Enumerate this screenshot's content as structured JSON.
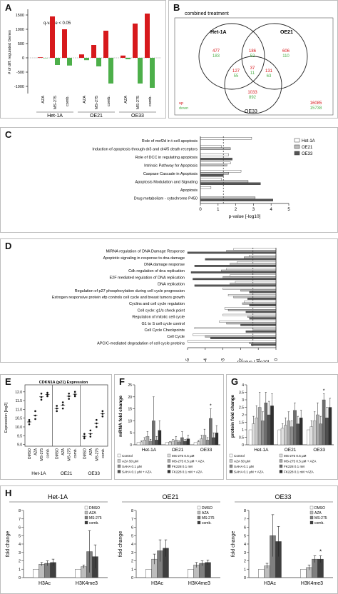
{
  "panels": {
    "A": {
      "label": "A",
      "annotation": "q-value < 0.05",
      "ylabel": "# of diff. regulated Genes",
      "yticks": [
        "1500",
        "1000",
        "500",
        "0",
        "-500",
        "-1000"
      ],
      "treatments": [
        "AZA",
        "MS-275",
        "comb."
      ],
      "groups": [
        "Het-1A",
        "OE21",
        "OE33"
      ]
    },
    "B": {
      "label": "B",
      "title": "combined treatment",
      "sets": [
        "Het-1A",
        "OE21",
        "OE33"
      ],
      "regions": [
        {
          "up": "477",
          "down": "183"
        },
        {
          "up": "606",
          "down": "110"
        },
        {
          "up": "186",
          "down": "52"
        },
        {
          "up": "37",
          "down": "11"
        },
        {
          "up": "127",
          "down": "55"
        },
        {
          "up": "131",
          "down": "63"
        },
        {
          "up": "1033",
          "down": "892"
        }
      ],
      "legend_up": "up",
      "legend_down": "down",
      "outside_up": "16085",
      "outside_down": "15738"
    },
    "C": {
      "label": "C",
      "legend": [
        "Het-1A",
        "OE21",
        "OE33"
      ],
      "xlabel": "p-value [-log10]",
      "xticks": [
        "0",
        "1",
        "2",
        "3",
        "4",
        "5"
      ],
      "terms": [
        "Role of mef2d in t-cell apoptosis",
        "Induction of apoptosis through dr3 and dr4/5 death receptors",
        "Role of DCC in regulating apoptosis",
        "Intrinsic Pathway for Apoptosis",
        "Caspase Cascade in Apoptosis",
        "Apoptosis Modulation and Signaling",
        "Apoptosis",
        "Drug metabolism - cytochrome P450"
      ]
    },
    "D": {
      "label": "D",
      "xlabel": "p-value [-log10]",
      "xticks": [
        "-5",
        "-4",
        "-3",
        "-2",
        "-1",
        "0"
      ],
      "terms": [
        "MiRNA regulation of DNA Damage Response",
        "Apoptotic signaling in response to dna damage",
        "DNA damage response",
        "Cdk regulation of dna replication",
        "E2F mediated regulation of DNA replication",
        "DNA replication",
        "Regulation of p27 phosphorylation during cell cycle progression",
        "Estrogen responsive protein efp controls cell cycle and breast tumors growth",
        "Cyclins and cell cycle regulation",
        "Cell cycle: g1/s check point",
        "Regulation of mitotic cell cycle",
        "G1 to S cell cycle control",
        "Cell Cycle Checkpoints",
        "Cell Cycle",
        "APC/C-mediated degradation of cell cycle proteins"
      ]
    },
    "E": {
      "label": "E",
      "title": "CDKN1A (p21) Expression",
      "ylabel": "Expression [log2]",
      "yticks": [
        "12.0",
        "11.5",
        "11.0",
        "10.5",
        "10.0",
        "9.5",
        "9.0"
      ],
      "treatments": [
        "DMSO",
        "AZA",
        "MS-275",
        "comb."
      ],
      "groups": [
        "Het-1A",
        "OE21",
        "OE33"
      ]
    },
    "F": {
      "label": "F",
      "ylabel": "mRNA fold change",
      "yticks": [
        "0",
        "5",
        "10",
        "15",
        "20",
        "25"
      ],
      "groups": [
        "Het-1A",
        "OE21",
        "OE33"
      ],
      "star": "*",
      "legend": [
        "Control",
        "MS-275 0.5 µM",
        "AZA 50 µM",
        "MS-275 0.5 µM + AZA",
        "SAHA 0.1 µM",
        "FK228 0.1 nM",
        "SAHA 0.1 µM + AZA",
        "FK228  0.1 nM + AZA"
      ]
    },
    "G": {
      "label": "G",
      "ylabel": "protein fold change",
      "yticks": [
        "0",
        "0.5",
        "1",
        "1.5",
        "2",
        "2.5",
        "3",
        "3.5",
        "4"
      ],
      "groups": [
        "Het-1A",
        "OE21",
        "OE33"
      ],
      "star": "*",
      "legend": [
        "Control",
        "MS-275 0.5 µM",
        "AZA 50 µM",
        "MS-275 0.5 µM + AZA",
        "SAHA 0.1 µM",
        "FK228 0.1 nM",
        "SAHA 0.1 µM + AZA",
        "FK228  0.1 nM +AZA"
      ]
    },
    "H": {
      "label": "H",
      "ylabel": "fold change",
      "subpanels": [
        {
          "title": "Het-1A",
          "yticks": [
            "0",
            "1",
            "2",
            "3",
            "4",
            "5",
            "6",
            "7",
            "8"
          ]
        },
        {
          "title": "OE21",
          "yticks": [
            "0",
            "1",
            "2",
            "3",
            "4",
            "5",
            "6",
            "7",
            "8"
          ]
        },
        {
          "title": "OE33",
          "yticks": [
            "0",
            "1",
            "2",
            "3",
            "4",
            "5",
            "6",
            "7",
            "8"
          ]
        }
      ],
      "categories": [
        "H3Ac",
        "H3K4me3"
      ],
      "legend": [
        "DMSO",
        "AZA",
        "MS-275",
        "comb."
      ],
      "star": "*"
    }
  },
  "chart_data": [
    {
      "type": "bar",
      "panel": "A",
      "ylabel": "# of diff. regulated Genes",
      "ylim": [
        -1250,
        1700
      ],
      "categories": [
        "Het-1A AZA",
        "Het-1A MS-275",
        "Het-1A comb.",
        "OE21 AZA",
        "OE21 MS-275",
        "OE21 comb.",
        "OE33 AZA",
        "OE33 MS-275",
        "OE33 comb."
      ],
      "series": [
        {
          "values": [
            20,
            1450,
            1000,
            120,
            450,
            950,
            80,
            1200,
            1550
          ]
        },
        {
          "values": [
            -10,
            -250,
            -270,
            -80,
            -300,
            -900,
            -50,
            -900,
            -1050
          ]
        }
      ],
      "colors": [
        "#d7191c",
        "#4daf4a"
      ]
    },
    {
      "type": "bar",
      "panel": "C",
      "xlabel": "p-value [-log10]",
      "xlim": [
        0,
        5
      ],
      "categories": [
        "Role of mef2d in t-cell apoptosis",
        "Induction of apoptosis through dr3 and dr4/5 death receptors",
        "Role of DCC in regulating apoptosis",
        "Intrinsic Pathway for Apoptosis",
        "Caspase Cascade in Apoptosis",
        "Apoptosis Modulation and Signaling",
        "Apoptosis",
        "Drug metabolism - cytochrome P450"
      ],
      "series": [
        {
          "name": "Het-1A",
          "values": [
            2.9,
            1.2,
            1.6,
            1.7,
            2.3,
            1.2,
            0.6,
            0
          ]
        },
        {
          "name": "OE21",
          "values": [
            0,
            1.7,
            0,
            1.5,
            1.6,
            2.7,
            0,
            3.1
          ]
        },
        {
          "name": "OE33",
          "values": [
            0,
            0,
            1.8,
            0,
            1.3,
            3.4,
            0,
            4.1
          ]
        }
      ],
      "threshold": 1.3
    },
    {
      "type": "bar",
      "panel": "D",
      "xlabel": "p-value [-log10]",
      "xlim": [
        -5,
        0
      ],
      "categories": [
        "MiRNA regulation of DNA Damage Response",
        "Apoptotic signaling in response to dna damage",
        "DNA damage response",
        "Cdk regulation of dna replication",
        "E2F mediated regulation of DNA replication",
        "DNA replication",
        "Regulation of p27 phosphorylation during cell cycle progression",
        "Estrogen responsive protein efp controls cell cycle and breast tumors growth",
        "Cyclins and cell cycle regulation",
        "Cell cycle: g1/s check point",
        "Regulation of mitotic cell cycle",
        "G1 to S cell cycle control",
        "Cell Cycle Checkpoints",
        "Cell Cycle",
        "APC/C-mediated degradation of cell cycle proteins"
      ],
      "series": [
        {
          "name": "Het-1A",
          "values": [
            -2.4,
            -1.5,
            -2.2,
            -2.8,
            -2.6,
            -2.3,
            -3.0,
            -2.7,
            -1.8,
            -2.9,
            -3.0,
            -3.2,
            -4.6,
            -4.7,
            -5.0
          ]
        },
        {
          "name": "OE21",
          "values": [
            -2.8,
            -1.8,
            -2.6,
            -3.1,
            -3.0,
            -2.6,
            -2.0,
            -2.4,
            -1.9,
            -2.7,
            -1.6,
            -2.8,
            -1.3,
            -4.0,
            -1.5
          ]
        },
        {
          "name": "OE33",
          "values": [
            -5.0,
            -4.0,
            -4.6,
            -4.8,
            -4.7,
            -4.6,
            -1.5,
            -1.6,
            -1.5,
            -1.7,
            -1.5,
            -2.0,
            -1.7,
            -3.7,
            -1.4
          ]
        }
      ],
      "threshold": -1.3
    },
    {
      "type": "scatter",
      "panel": "E",
      "title": "CDKN1A (p21) Expression",
      "ylabel": "Expression [log2]",
      "ylim": [
        8.9,
        12.4
      ],
      "categories": [
        "Het-1A DMSO",
        "Het-1A AZA",
        "Het-1A MS-275",
        "Het-1A comb.",
        "OE21 DMSO",
        "OE21 AZA",
        "OE21 MS-275",
        "OE21 comb.",
        "OE33 DMSO",
        "OE33 AZA",
        "OE33 MS-275",
        "OE33 comb."
      ],
      "values": [
        [
          10.15,
          10.4,
          10.3
        ],
        [
          10.45,
          10.9,
          10.65
        ],
        [
          11.55,
          11.9,
          11.7
        ],
        [
          11.75,
          11.95,
          11.85
        ],
        [
          10.9,
          11.2,
          11.05
        ],
        [
          11.05,
          11.4,
          11.25
        ],
        [
          11.6,
          11.9,
          11.75
        ],
        [
          11.75,
          12.0,
          11.85
        ],
        [
          9.35,
          9.6,
          9.45
        ],
        [
          9.45,
          9.8,
          9.6
        ],
        [
          10.0,
          10.4,
          10.2
        ],
        [
          10.6,
          10.9,
          10.75
        ]
      ]
    },
    {
      "type": "bar",
      "panel": "F",
      "ylabel": "mRNA fold change",
      "ylim": [
        0,
        25
      ],
      "categories": [
        "Het-1A",
        "OE21",
        "OE33"
      ],
      "series": [
        {
          "values": [
            1,
            1,
            1
          ],
          "errors": [
            0,
            0,
            0
          ]
        },
        {
          "values": [
            1.2,
            1.1,
            1.3
          ],
          "errors": [
            0.4,
            0.3,
            0.5
          ]
        },
        {
          "values": [
            2.0,
            1.5,
            2.5
          ],
          "errors": [
            1.0,
            0.8,
            1.5
          ]
        },
        {
          "values": [
            3.5,
            2.0,
            4.0
          ],
          "errors": [
            2.0,
            1.5,
            2.5
          ]
        },
        {
          "values": [
            1.5,
            1.2,
            2.0
          ],
          "errors": [
            0.8,
            0.5,
            1.0
          ]
        },
        {
          "values": [
            10.0,
            3.0,
            11.0
          ],
          "errors": [
            10.0,
            2.5,
            4.0
          ]
        },
        {
          "values": [
            2.0,
            1.5,
            3.0
          ],
          "errors": [
            1.5,
            0.8,
            2.0
          ]
        },
        {
          "values": [
            6.0,
            2.5,
            5.0
          ],
          "errors": [
            4.0,
            1.5,
            3.0
          ]
        }
      ]
    },
    {
      "type": "bar",
      "panel": "G",
      "ylabel": "protein fold change",
      "ylim": [
        0,
        4
      ],
      "categories": [
        "Het-1A",
        "OE21",
        "OE33"
      ],
      "series": [
        {
          "values": [
            1,
            1,
            1
          ],
          "errors": [
            0,
            0,
            0
          ]
        },
        {
          "values": [
            1.4,
            1.1,
            1.2
          ],
          "errors": [
            0.5,
            0.3,
            0.4
          ]
        },
        {
          "values": [
            1.8,
            1.3,
            1.6
          ],
          "errors": [
            0.8,
            0.5,
            0.6
          ]
        },
        {
          "values": [
            2.5,
            1.6,
            2.0
          ],
          "errors": [
            1.0,
            0.6,
            0.8
          ]
        },
        {
          "values": [
            1.6,
            1.2,
            1.4
          ],
          "errors": [
            0.6,
            0.4,
            0.5
          ]
        },
        {
          "values": [
            2.8,
            2.3,
            3.0
          ],
          "errors": [
            0.7,
            0.5,
            0.4
          ]
        },
        {
          "values": [
            2.0,
            1.4,
            1.8
          ],
          "errors": [
            0.9,
            0.5,
            0.7
          ]
        },
        {
          "values": [
            2.6,
            1.8,
            2.5
          ],
          "errors": [
            0.8,
            0.5,
            0.6
          ]
        }
      ]
    },
    {
      "type": "bar",
      "panel": "H",
      "subpanel": "Het-1A",
      "ylabel": "fold change",
      "ylim": [
        0,
        8
      ],
      "categories": [
        "H3Ac",
        "H3K4me3"
      ],
      "series": [
        {
          "name": "DMSO",
          "values": [
            1,
            1
          ],
          "errors": [
            0,
            0
          ]
        },
        {
          "name": "AZA",
          "values": [
            1.6,
            1.3
          ],
          "errors": [
            0.2,
            0.2
          ]
        },
        {
          "name": "MS-275",
          "values": [
            1.7,
            3.1
          ],
          "errors": [
            0.3,
            2.5
          ]
        },
        {
          "name": "comb.",
          "values": [
            1.8,
            2.5
          ],
          "errors": [
            0.4,
            1.4
          ]
        }
      ]
    },
    {
      "type": "bar",
      "panel": "H",
      "subpanel": "OE21",
      "ylabel": "fold change",
      "ylim": [
        0,
        8
      ],
      "categories": [
        "H3Ac",
        "H3K4me3"
      ],
      "series": [
        {
          "name": "DMSO",
          "values": [
            1,
            1
          ],
          "errors": [
            0,
            0
          ]
        },
        {
          "name": "AZA",
          "values": [
            2.2,
            1.5
          ],
          "errors": [
            0.6,
            0.3
          ]
        },
        {
          "name": "MS-275",
          "values": [
            3.2,
            1.7
          ],
          "errors": [
            1.3,
            0.3
          ]
        },
        {
          "name": "comb.",
          "values": [
            3.5,
            1.8
          ],
          "errors": [
            1.0,
            0.3
          ]
        }
      ]
    },
    {
      "type": "bar",
      "panel": "H",
      "subpanel": "OE33",
      "ylabel": "fold change",
      "ylim": [
        0,
        8
      ],
      "categories": [
        "H3Ac",
        "H3K4me3"
      ],
      "series": [
        {
          "name": "DMSO",
          "values": [
            1,
            1
          ],
          "errors": [
            0,
            0
          ]
        },
        {
          "name": "AZA",
          "values": [
            1.4,
            1.2
          ],
          "errors": [
            0.3,
            0.3
          ]
        },
        {
          "name": "MS-275",
          "values": [
            5.0,
            2.2
          ],
          "errors": [
            2.5,
            0.4
          ]
        },
        {
          "name": "comb.",
          "values": [
            4.3,
            2.2
          ],
          "errors": [
            1.8,
            0.4
          ]
        }
      ]
    }
  ]
}
